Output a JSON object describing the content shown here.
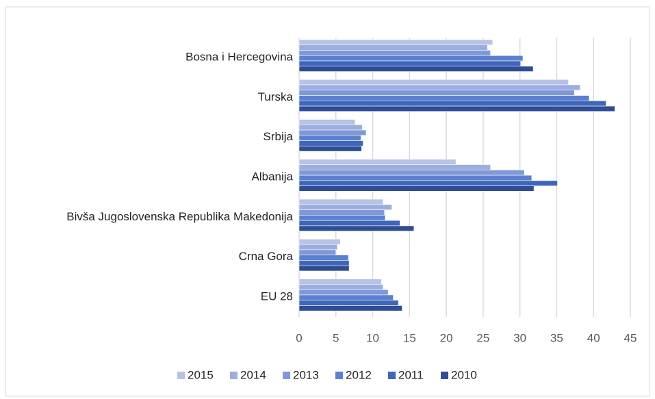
{
  "chart_data": {
    "type": "bar",
    "orientation": "horizontal",
    "categories": [
      "Bosna i Hercegovina",
      "Turska",
      "Srbija",
      "Albanija",
      "Bivša Jugoslovenska Republika Makedonija",
      "Crna Gora",
      "EU 28"
    ],
    "series": [
      {
        "name": "2015",
        "color": "#b6c2e6",
        "values": [
          26.3,
          36.6,
          7.6,
          21.3,
          11.4,
          5.6,
          11.2
        ]
      },
      {
        "name": "2014",
        "color": "#9caee0",
        "values": [
          25.6,
          38.2,
          8.6,
          26.0,
          12.6,
          5.2,
          11.4
        ]
      },
      {
        "name": "2013",
        "color": "#7f98d8",
        "values": [
          26.0,
          37.4,
          9.1,
          30.6,
          11.6,
          5.0,
          12.1
        ]
      },
      {
        "name": "2012",
        "color": "#5b80cf",
        "values": [
          30.4,
          39.4,
          8.4,
          31.6,
          11.7,
          6.7,
          12.8
        ]
      },
      {
        "name": "2011",
        "color": "#3f66b9",
        "values": [
          30.1,
          41.7,
          8.7,
          35.1,
          13.7,
          6.8,
          13.5
        ]
      },
      {
        "name": "2010",
        "color": "#2e4d94",
        "values": [
          31.8,
          42.9,
          8.5,
          31.9,
          15.6,
          6.8,
          14.0
        ]
      }
    ],
    "xlim": [
      0,
      45
    ],
    "xticks": [
      0,
      5,
      10,
      15,
      20,
      25,
      30,
      35,
      40,
      45
    ],
    "grid": true,
    "legend": "bottom"
  }
}
